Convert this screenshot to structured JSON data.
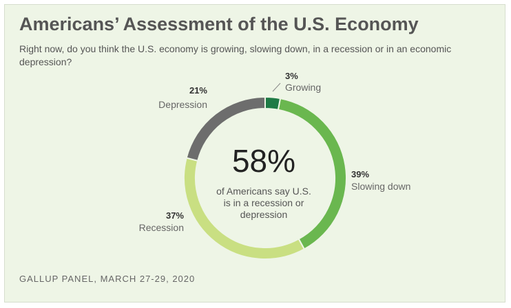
{
  "header": {
    "title": "Americans’ Assessment of the U.S. Economy",
    "subtitle": "Right now, do you think the U.S. economy is growing, slowing down, in a recession or in an economic depression?"
  },
  "center": {
    "big_value": "58%",
    "lines": [
      "of Americans say U.S.",
      "is in a recession or",
      "depression"
    ]
  },
  "footer": {
    "source": "GALLUP PANEL, MARCH 27-29, 2020"
  },
  "chart_data": {
    "type": "pie",
    "donut": true,
    "title": "Americans’ Assessment of the U.S. Economy",
    "slices": [
      {
        "label": "Growing",
        "value": 3,
        "display": "3%",
        "color": "#1e7a45"
      },
      {
        "label": "Slowing down",
        "value": 39,
        "display": "39%",
        "color": "#6ab74f"
      },
      {
        "label": "Recession",
        "value": 37,
        "display": "37%",
        "color": "#c9df82"
      },
      {
        "label": "Depression",
        "value": 21,
        "display": "21%",
        "color": "#6d6d6d"
      }
    ]
  }
}
